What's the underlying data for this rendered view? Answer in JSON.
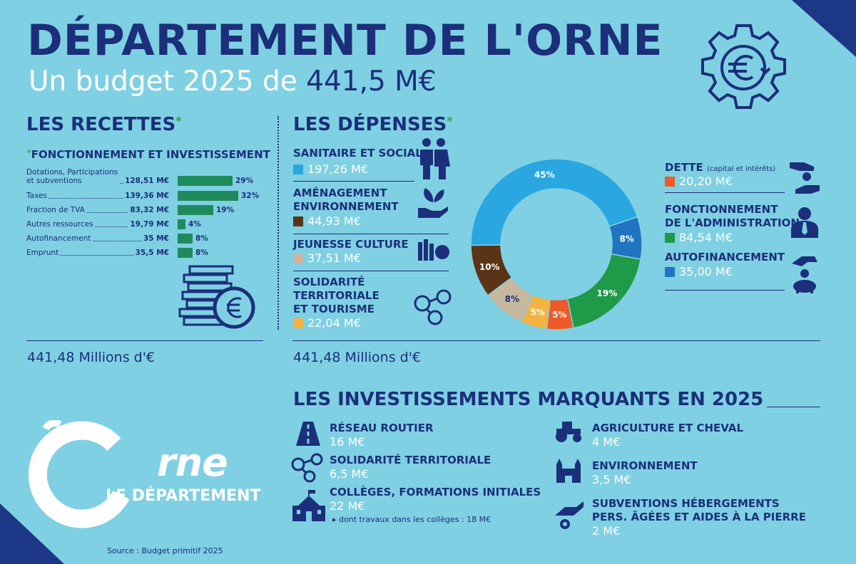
{
  "header": {
    "title": "DÉPARTEMENT DE L'ORNE",
    "subtitle_prefix": "Un budget 2025 de",
    "subtitle_amount": "441,5 M€"
  },
  "recettes": {
    "heading": "LES RECETTES",
    "star": "*",
    "subheading": "FONCTIONNEMENT ET INVESTISSEMENT",
    "total": "441,48 Millions d'€"
  },
  "depenses": {
    "heading": "LES DÉPENSES",
    "star": "*",
    "total": "441,48 Millions d'€",
    "left_items": [
      {
        "label": "SANITAIRE ET SOCIAL",
        "value": "197,26 M€",
        "color": "#2aa7e0"
      },
      {
        "label_1": "AMÉNAGEMENT",
        "label_2": "ENVIRONNEMENT",
        "value": "44,93 M€",
        "color": "#5b3418"
      },
      {
        "label": "JEUNESSE CULTURE",
        "value": "37,51 M€",
        "color": "#c9b8a0"
      },
      {
        "label_1": "SOLIDARITÉ",
        "label_2": "TERRITORIALE",
        "label_3": "ET TOURISME",
        "value": "22,04 M€",
        "color": "#f5b342"
      }
    ],
    "right_items": [
      {
        "label": "DETTE",
        "note": "(capital et intérêts)",
        "value": "20,20 M€",
        "color": "#ef5a28"
      },
      {
        "label_1": "FONCTIONNEMENT",
        "label_2": "DE L'ADMINISTRATION",
        "value": "84,54 M€",
        "color": "#1e9a48"
      },
      {
        "label": "AUTOFINANCEMENT",
        "value": "35,00 M€",
        "color": "#1f75c0"
      }
    ]
  },
  "investissements": {
    "heading": "LES INVESTISSEMENTS MARQUANTS EN 2025",
    "items": [
      {
        "title": "RÉSEAU ROUTIER",
        "value": "16 M€",
        "icon": "road-icon"
      },
      {
        "title": "SOLIDARITÉ TERRITORIALE",
        "value": "6,5 M€",
        "icon": "network-icon"
      },
      {
        "title": "COLLÈGES, FORMATIONS INITIALES",
        "value": "22 M€",
        "note": "dont travaux dans les collèges : 18 M€",
        "icon": "school-icon"
      },
      {
        "title": "AGRICULTURE ET CHEVAL",
        "value": "4 M€",
        "icon": "tractor-icon"
      },
      {
        "title": "ENVIRONNEMENT",
        "value": "3,5 M€",
        "icon": "castle-icon"
      },
      {
        "title_1": "SUBVENTIONS HÉBERGEMENTS",
        "title_2": "PERS. ÂGÉES ET AIDES À LA PIERRE",
        "value": "2 M€",
        "icon": "hand-coin-icon"
      }
    ]
  },
  "logo": {
    "name": "rne",
    "tagline": "LE DÉPARTEMENT"
  },
  "source": "Source : Budget primitif 2025",
  "chart_data": [
    {
      "type": "bar",
      "title": "FONCTIONNEMENT ET INVESTISSEMENT",
      "categories": [
        "Dotations, Participations et subventions",
        "Taxes",
        "Fraction de TVA",
        "Autres ressources",
        "Autofinancement",
        "Emprunt"
      ],
      "category_lines": [
        [
          "Dotations, Participations",
          "et subventions"
        ],
        [
          "Taxes"
        ],
        [
          "Fraction de TVA"
        ],
        [
          "Autres ressources"
        ],
        [
          "Autofinancement"
        ],
        [
          "Emprunt"
        ]
      ],
      "amounts": [
        "128,51 M€",
        "139,36 M€",
        "83,32 M€",
        "19,79 M€",
        "35 M€",
        "35,5 M€"
      ],
      "values": [
        29,
        32,
        19,
        4,
        8,
        8
      ],
      "value_labels": [
        "29%",
        "32%",
        "19%",
        "4%",
        "8%",
        "8%"
      ],
      "bar_color": "#1f8a5c"
    },
    {
      "type": "pie",
      "categories": [
        "SANITAIRE ET SOCIAL",
        "AUTOFINANCEMENT",
        "FONCTIONNEMENT DE L'ADMINISTRATION",
        "DETTE",
        "SOLIDARITÉ TERRITORIALE ET TOURISME",
        "JEUNESSE CULTURE",
        "AMÉNAGEMENT ENVIRONNEMENT"
      ],
      "values": [
        45,
        8,
        19,
        5,
        5,
        8,
        10
      ],
      "value_labels": [
        "45%",
        "8%",
        "19%",
        "5%",
        "5%",
        "8%",
        "10%"
      ],
      "colors": [
        "#2aa7e0",
        "#1f75c0",
        "#1e9a48",
        "#ef5a28",
        "#f5b342",
        "#c9b8a0",
        "#5b3418"
      ]
    }
  ]
}
